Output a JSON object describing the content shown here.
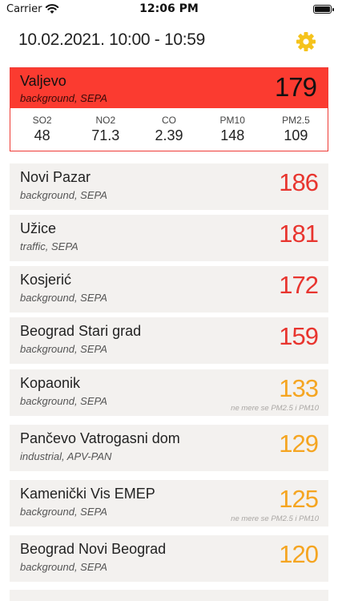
{
  "status_bar": {
    "carrier": "Carrier",
    "time": "12:06 PM"
  },
  "header": {
    "period": "10.02.2021. 10:00 - 10:59",
    "settings_icon": "gear-icon"
  },
  "selected": {
    "name": "Valjevo",
    "type": "background, SEPA",
    "aqi": "179",
    "pollutants": [
      {
        "name": "SO2",
        "value": "48"
      },
      {
        "name": "NO2",
        "value": "71.3"
      },
      {
        "name": "CO",
        "value": "2.39"
      },
      {
        "name": "PM10",
        "value": "148"
      },
      {
        "name": "PM2.5",
        "value": "109"
      }
    ]
  },
  "stations": [
    {
      "name": "Novi Pazar",
      "type": "background, SEPA",
      "aqi": "186",
      "level": "red",
      "note": ""
    },
    {
      "name": "Užice",
      "type": "traffic, SEPA",
      "aqi": "181",
      "level": "red",
      "note": ""
    },
    {
      "name": "Kosjerić",
      "type": "background, SEPA",
      "aqi": "172",
      "level": "red",
      "note": ""
    },
    {
      "name": "Beograd Stari grad",
      "type": "background, SEPA",
      "aqi": "159",
      "level": "red",
      "note": ""
    },
    {
      "name": "Kopaonik",
      "type": "background, SEPA",
      "aqi": "133",
      "level": "orange",
      "note": "ne mere se PM2.5 i PM10"
    },
    {
      "name": "Pančevo Vatrogasni dom",
      "type": "industrial, APV-PAN",
      "aqi": "129",
      "level": "orange",
      "note": ""
    },
    {
      "name": "Kamenički Vis EMEP",
      "type": "background, SEPA",
      "aqi": "125",
      "level": "orange",
      "note": "ne mere se PM2.5 i PM10"
    },
    {
      "name": "Beograd Novi Beograd",
      "type": "background, SEPA",
      "aqi": "120",
      "level": "orange",
      "note": ""
    },
    {
      "name": "",
      "type": "",
      "aqi": "",
      "level": "orange",
      "note": ""
    }
  ],
  "colors": {
    "selected_header": "#fb3b30",
    "high": "#e8352f",
    "moderate": "#f5a521",
    "card_bg": "#f3f1ef",
    "gear": "#f5c31c"
  }
}
